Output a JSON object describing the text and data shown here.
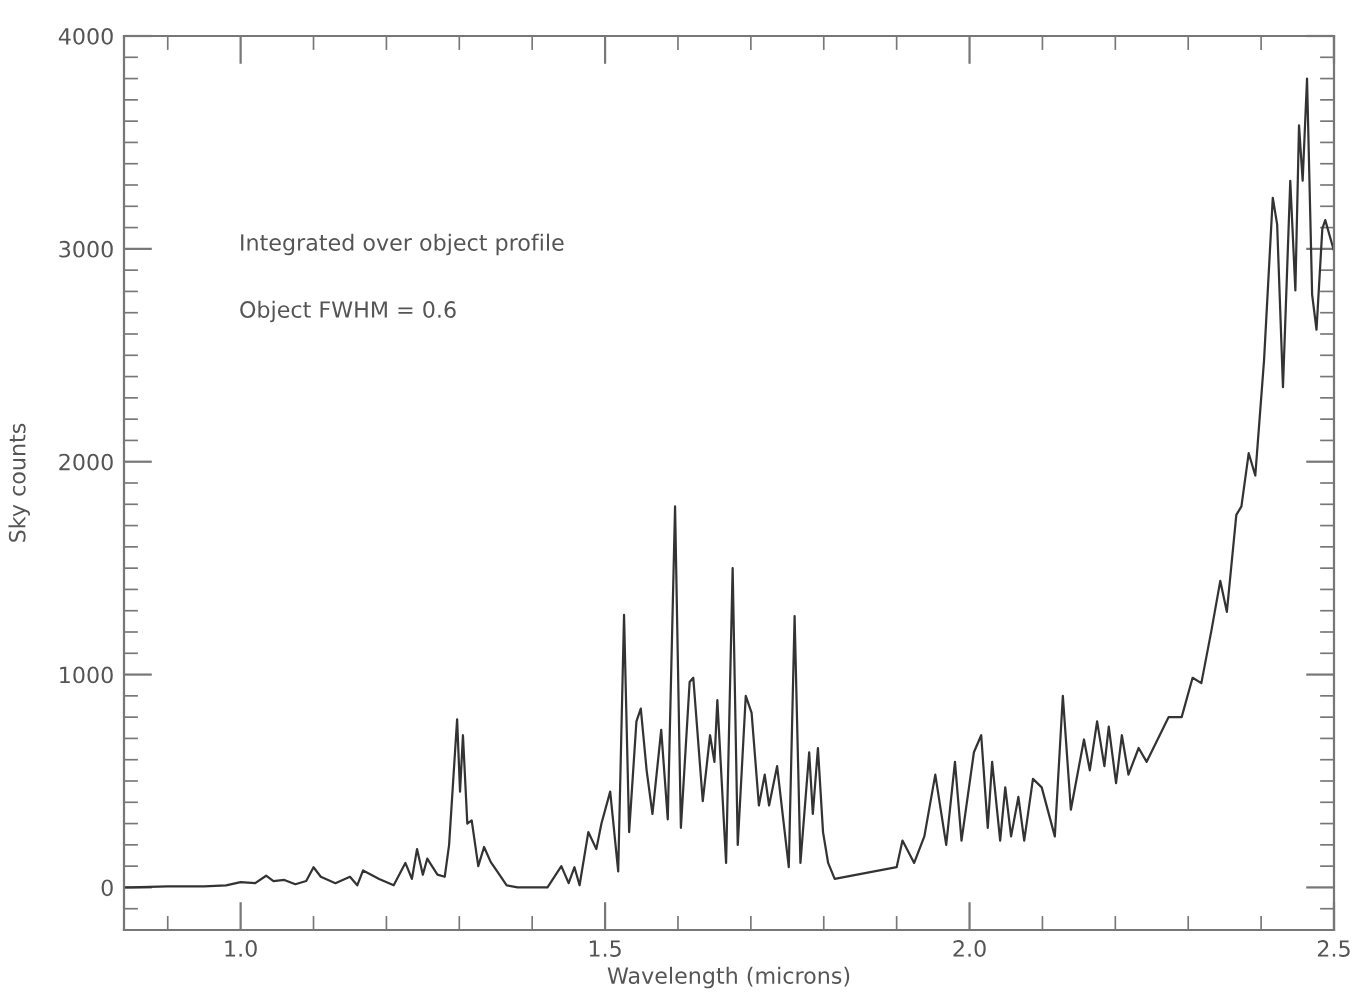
{
  "chart_data": {
    "type": "line",
    "xlabel": "Wavelength (microns)",
    "ylabel": "Sky counts",
    "annotations": [
      "Integrated over object profile",
      "Object FWHM = 0.6"
    ],
    "xlim": [
      0.84,
      2.5
    ],
    "ylim": [
      -200,
      4000
    ],
    "xticks": [
      {
        "value": 1.0,
        "label": "1.0"
      },
      {
        "value": 1.5,
        "label": "1.5"
      },
      {
        "value": 2.0,
        "label": "2.0"
      },
      {
        "value": 2.5,
        "label": "2.5"
      }
    ],
    "yticks": [
      0,
      1000,
      2000,
      3000,
      4000
    ],
    "grid": false,
    "legend": false,
    "marker": "none",
    "line_style": "solid",
    "series": [
      {
        "color": "#333333",
        "x": [
          0.842,
          0.85,
          0.9,
          0.95,
          0.98,
          1.0,
          1.02,
          1.035,
          1.045,
          1.06,
          1.075,
          1.09,
          1.1,
          1.11,
          1.13,
          1.15,
          1.16,
          1.168,
          1.19,
          1.21,
          1.226,
          1.235,
          1.242,
          1.25,
          1.256,
          1.27,
          1.28,
          1.286,
          1.297,
          1.301,
          1.305,
          1.311,
          1.317,
          1.326,
          1.334,
          1.343,
          1.352,
          1.365,
          1.38,
          1.421,
          1.44,
          1.45,
          1.458,
          1.465,
          1.477,
          1.488,
          1.495,
          1.507,
          1.518,
          1.526,
          1.533,
          1.543,
          1.549,
          1.557,
          1.565,
          1.577,
          1.586,
          1.596,
          1.604,
          1.616,
          1.621,
          1.634,
          1.644,
          1.65,
          1.654,
          1.666,
          1.675,
          1.682,
          1.693,
          1.701,
          1.711,
          1.719,
          1.725,
          1.736,
          1.752,
          1.76,
          1.768,
          1.78,
          1.785,
          1.792,
          1.799,
          1.806,
          1.815,
          1.9,
          1.908,
          1.924,
          1.938,
          1.953,
          1.968,
          1.98,
          1.989,
          2.006,
          2.016,
          2.025,
          2.031,
          2.042,
          2.049,
          2.057,
          2.067,
          2.075,
          2.087,
          2.099,
          2.117,
          2.128,
          2.139,
          2.157,
          2.165,
          2.175,
          2.185,
          2.191,
          2.201,
          2.209,
          2.218,
          2.232,
          2.243,
          2.258,
          2.273,
          2.291,
          2.306,
          2.318,
          2.332,
          2.344,
          2.353,
          2.366,
          2.373,
          2.383,
          2.392,
          2.404,
          2.416,
          2.422,
          2.43,
          2.44,
          2.447,
          2.452,
          2.457,
          2.463,
          2.47,
          2.476,
          2.484,
          2.488,
          2.5
        ],
        "values": [
          0,
          0,
          5,
          5,
          10,
          25,
          20,
          55,
          30,
          35,
          15,
          30,
          95,
          50,
          20,
          50,
          10,
          80,
          40,
          10,
          115,
          40,
          180,
          60,
          135,
          60,
          50,
          200,
          790,
          450,
          715,
          300,
          315,
          100,
          190,
          120,
          75,
          10,
          0,
          0,
          100,
          20,
          95,
          10,
          260,
          180,
          300,
          450,
          75,
          1280,
          260,
          780,
          840,
          550,
          345,
          740,
          320,
          1790,
          280,
          965,
          985,
          405,
          715,
          590,
          880,
          115,
          1500,
          200,
          900,
          820,
          385,
          530,
          385,
          570,
          95,
          1275,
          115,
          635,
          345,
          655,
          260,
          115,
          40,
          95,
          220,
          115,
          240,
          530,
          200,
          590,
          220,
          635,
          715,
          280,
          590,
          220,
          470,
          240,
          425,
          220,
          510,
          470,
          240,
          900,
          365,
          695,
          550,
          780,
          570,
          755,
          490,
          715,
          530,
          655,
          590,
          695,
          800,
          800,
          985,
          960,
          1210,
          1440,
          1295,
          1750,
          1790,
          2040,
          1935,
          2475,
          3240,
          3115,
          2350,
          3320,
          2805,
          3580,
          3320,
          3800,
          2785,
          2620,
          3095,
          3135,
          2990
        ]
      }
    ]
  }
}
